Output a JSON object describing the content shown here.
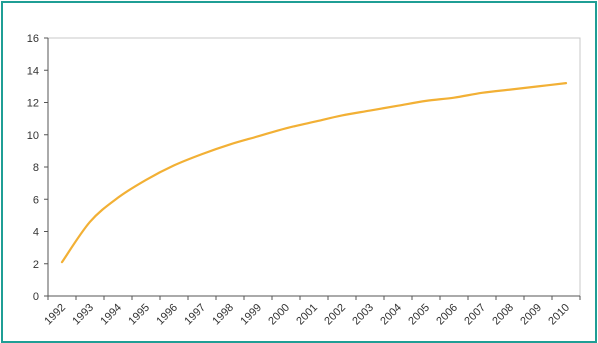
{
  "colors": {
    "frame_border": "#1f9e95",
    "plot_border": "#c8c8c8",
    "series_line": "#f2b035",
    "axis": "#555555"
  },
  "chart_data": {
    "type": "line",
    "title": "",
    "xlabel": "",
    "ylabel": "",
    "grid": false,
    "legend": "none",
    "ylim": [
      0,
      16
    ],
    "yticks": [
      "0",
      "2",
      "4",
      "6",
      "8",
      "10",
      "12",
      "14",
      "16"
    ],
    "categories": [
      "1992",
      "1993",
      "1994",
      "1995",
      "1996",
      "1997",
      "1998",
      "1999",
      "2000",
      "2001",
      "2002",
      "2003",
      "2004",
      "2005",
      "2006",
      "2007",
      "2008",
      "2009",
      "2010"
    ],
    "series": [
      {
        "values": [
          2.1,
          4.6,
          6.1,
          7.2,
          8.1,
          8.8,
          9.4,
          9.9,
          10.4,
          10.8,
          11.2,
          11.5,
          11.8,
          12.1,
          12.3,
          12.6,
          12.8,
          13.0,
          13.2
        ]
      }
    ]
  }
}
